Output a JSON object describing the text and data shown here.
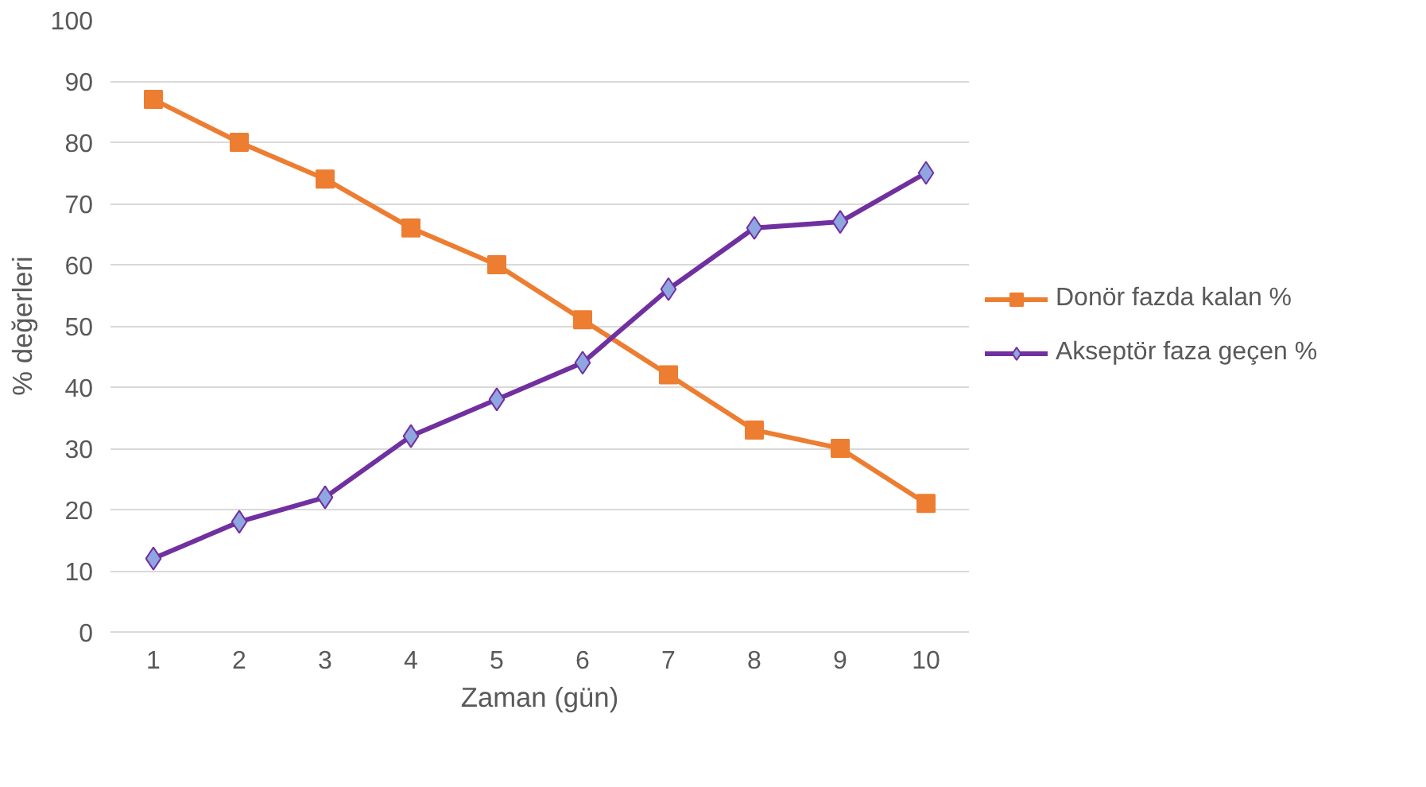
{
  "chart_data": {
    "type": "line",
    "xlabel": "Zaman (gün)",
    "ylabel": "% değerleri",
    "categories": [
      "1",
      "2",
      "3",
      "4",
      "5",
      "6",
      "7",
      "8",
      "9",
      "10"
    ],
    "series": [
      {
        "name": "Donör fazda kalan %",
        "color": "#ed7d31",
        "marker": "square",
        "values": [
          87,
          80,
          74,
          66,
          60,
          51,
          42,
          33,
          30,
          21
        ]
      },
      {
        "name": "Akseptör faza geçen %",
        "color": "#7030a0",
        "marker": "diamond",
        "values": [
          12,
          18,
          22,
          32,
          38,
          44,
          56,
          66,
          67,
          75
        ]
      }
    ],
    "ylim": [
      0,
      100
    ],
    "yticks": [
      0,
      10,
      20,
      30,
      40,
      50,
      60,
      70,
      80,
      90,
      100
    ],
    "grid": "y",
    "legend": "right",
    "line_style": "solid"
  }
}
